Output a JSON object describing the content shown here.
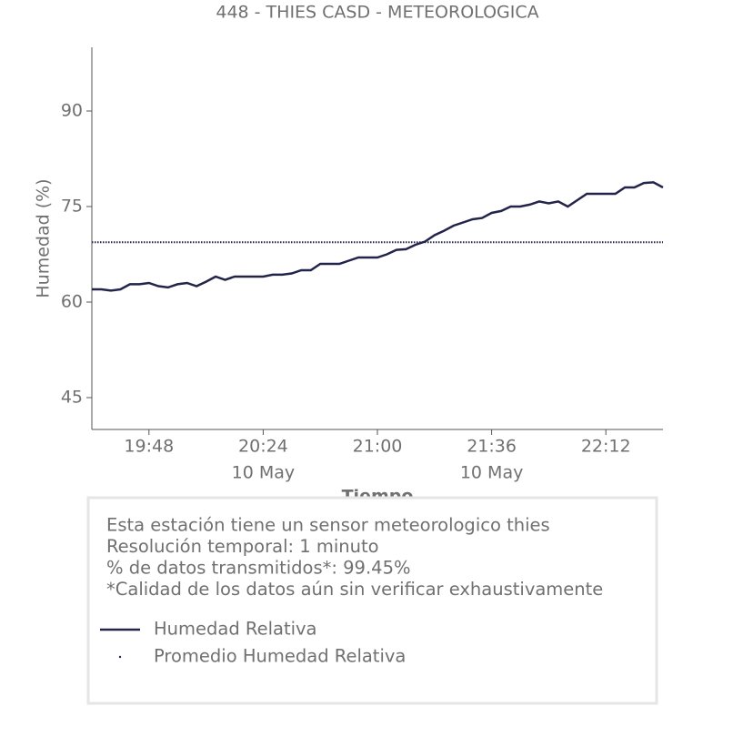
{
  "chart_data": {
    "type": "line",
    "title": "448 - THIES CASD - METEOROLOGICA",
    "x_label": "Tiempo",
    "y_label": "Humedad (%)",
    "x": [
      "19:30",
      "19:33",
      "19:36",
      "19:39",
      "19:42",
      "19:45",
      "19:48",
      "19:51",
      "19:54",
      "19:57",
      "20:00",
      "20:03",
      "20:06",
      "20:09",
      "20:12",
      "20:15",
      "20:18",
      "20:21",
      "20:24",
      "20:27",
      "20:30",
      "20:33",
      "20:36",
      "20:39",
      "20:42",
      "20:45",
      "20:48",
      "20:51",
      "20:54",
      "20:57",
      "21:00",
      "21:03",
      "21:06",
      "21:09",
      "21:12",
      "21:15",
      "21:18",
      "21:21",
      "21:24",
      "21:27",
      "21:30",
      "21:33",
      "21:36",
      "21:39",
      "21:42",
      "21:45",
      "21:48",
      "21:51",
      "21:54",
      "21:57",
      "22:00",
      "22:03",
      "22:06",
      "22:09",
      "22:12",
      "22:15",
      "22:18",
      "22:21",
      "22:24",
      "22:27",
      "22:30"
    ],
    "series": [
      {
        "name": "Humedad Relativa",
        "color": "#23244a",
        "values": [
          62,
          62,
          61.8,
          62,
          62.8,
          62.8,
          63,
          62.5,
          62.3,
          62.8,
          63,
          62.5,
          63.2,
          64,
          63.5,
          64,
          64,
          64,
          64,
          64.3,
          64.3,
          64.5,
          65,
          65,
          66,
          66,
          66,
          66.5,
          67,
          67,
          67,
          67.5,
          68.2,
          68.3,
          69,
          69.5,
          70.5,
          71.2,
          72,
          72.5,
          73,
          73.2,
          74,
          74.3,
          75,
          75,
          75.3,
          75.8,
          75.5,
          75.8,
          75,
          76,
          77,
          77,
          77,
          77,
          78,
          78,
          78.7,
          78.8,
          78
        ]
      },
      {
        "name": "Promedio Humedad Relativa",
        "color": "#23244a",
        "value": 69.4,
        "style": "dotted"
      }
    ],
    "xlim": [
      "19:30",
      "22:30"
    ],
    "xticks": [
      "19:48",
      "20:24",
      "21:00",
      "21:36",
      "22:12"
    ],
    "xtick_dates": [
      null,
      "10 May",
      null,
      "10 May",
      null
    ],
    "ylim": [
      40,
      100
    ],
    "yticks": [
      45,
      60,
      75,
      90
    ],
    "notes": [
      "Esta estación tiene un sensor meteorologico thies",
      "Resolución temporal: 1 minuto",
      "% de datos transmitidos*: 99.45%",
      "*Calidad de los datos aún sin verificar exhaustivamente"
    ]
  }
}
